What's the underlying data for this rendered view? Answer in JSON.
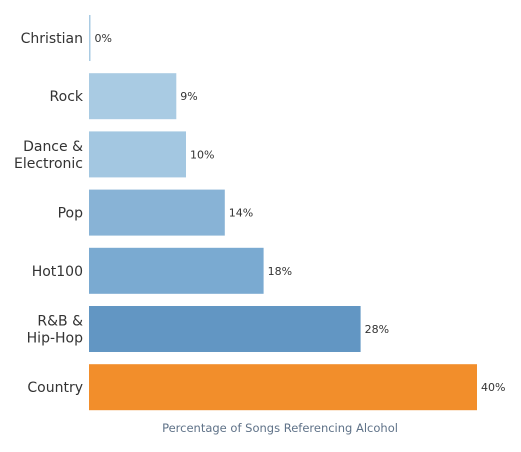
{
  "chart_data": {
    "type": "bar",
    "orientation": "horizontal",
    "categories": [
      "Christian",
      "Rock",
      "Dance & Electronic",
      "Pop",
      "Hot100",
      "R&B & Hip-Hop",
      "Country"
    ],
    "category_lines": [
      [
        "Christian"
      ],
      [
        "Rock"
      ],
      [
        "Dance &",
        "Electronic"
      ],
      [
        "Pop"
      ],
      [
        "Hot100"
      ],
      [
        "R&B &",
        "Hip-Hop"
      ],
      [
        "Country"
      ]
    ],
    "values": [
      0,
      9,
      10,
      14,
      18,
      28,
      40
    ],
    "value_labels": [
      "0%",
      "9%",
      "10%",
      "14%",
      "18%",
      "28%",
      "40%"
    ],
    "xlabel": "Percentage of Songs Referencing Alcohol",
    "ylabel": "",
    "xlim": [
      0,
      40
    ],
    "grid": false,
    "colors": [
      "#a9cbe3",
      "#a9cbe3",
      "#a3c7e1",
      "#88b3d6",
      "#7aaad1",
      "#6296c3",
      "#f28e2b"
    ]
  }
}
